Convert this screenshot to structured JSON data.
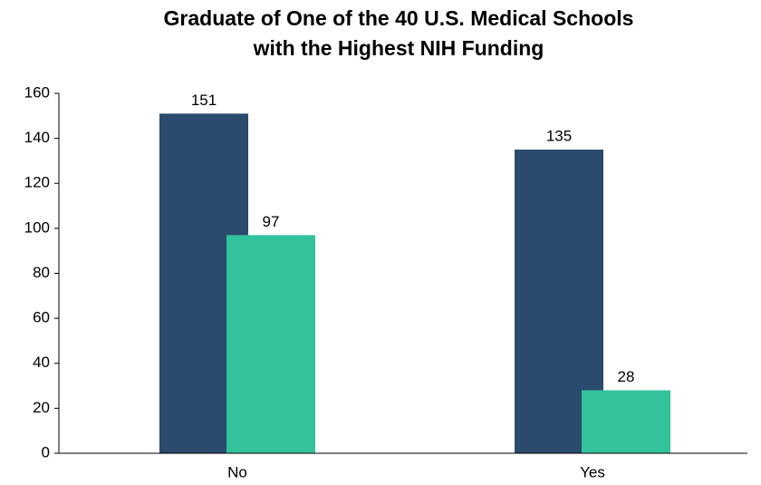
{
  "chart_data": {
    "type": "bar",
    "title": [
      "Graduate of One of the 40 U.S. Medical Schools",
      "with the Highest NIH Funding"
    ],
    "categories": [
      "No",
      "Yes"
    ],
    "series": [
      {
        "color": "#2a4a6e",
        "values": [
          151,
          135
        ]
      },
      {
        "color": "#33c39c",
        "values": [
          97,
          28
        ]
      }
    ],
    "ylim": [
      0,
      160
    ],
    "yticks": [
      0,
      20,
      40,
      60,
      80,
      100,
      120,
      140,
      160
    ],
    "grid": false
  }
}
